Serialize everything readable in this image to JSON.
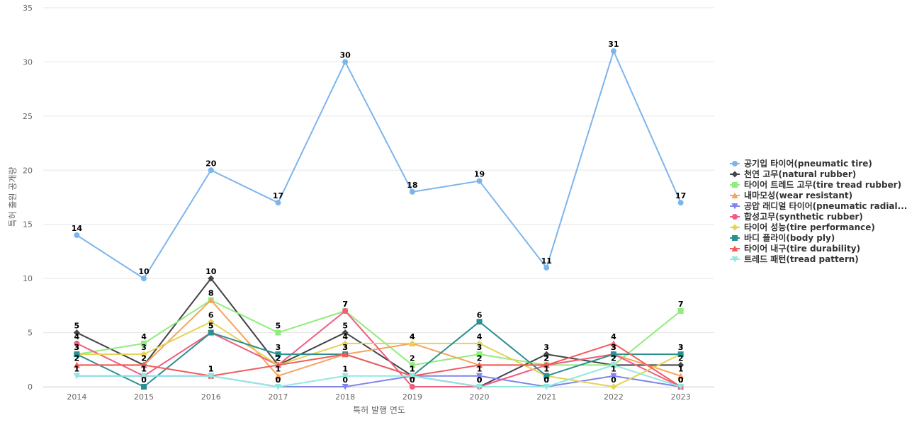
{
  "chart_data": {
    "type": "line",
    "title": "",
    "xlabel": "특허 발행 연도",
    "ylabel": "특허 출원 공개량",
    "categories": [
      "2014",
      "2015",
      "2016",
      "2017",
      "2018",
      "2019",
      "2020",
      "2021",
      "2022",
      "2023"
    ],
    "ylim": [
      0,
      35
    ],
    "yticks": [
      0,
      5,
      10,
      15,
      20,
      25,
      30,
      35
    ],
    "grid": true,
    "legend_position": "right",
    "series": [
      {
        "name": "공기입 타이어(pneumatic tire)",
        "color": "#7cb5ec",
        "marker": "circle",
        "values": [
          14,
          10,
          20,
          17,
          30,
          18,
          19,
          11,
          31,
          17
        ]
      },
      {
        "name": "천연 고무(natural rubber)",
        "color": "#434348",
        "marker": "diamond",
        "values": [
          5,
          2,
          10,
          2,
          5,
          1,
          0,
          3,
          2,
          2
        ]
      },
      {
        "name": "타이어 트레드 고무(tire tread rubber)",
        "color": "#90ed7d",
        "marker": "square",
        "values": [
          3,
          4,
          8,
          5,
          7,
          2,
          3,
          2,
          2,
          7
        ]
      },
      {
        "name": "내마모성(wear resistant)",
        "color": "#f7a35c",
        "marker": "triangle",
        "values": [
          2,
          2,
          8,
          1,
          3,
          4,
          2,
          2,
          3,
          1
        ]
      },
      {
        "name": "공압 래디얼 타이어(pneumatic radial...",
        "color": "#8085e9",
        "marker": "triangle-down",
        "values": [
          1,
          1,
          1,
          0,
          0,
          1,
          1,
          0,
          1,
          0
        ]
      },
      {
        "name": "합성고무(synthetic rubber)",
        "color": "#f15c80",
        "marker": "circle",
        "values": [
          4,
          1,
          5,
          2,
          7,
          0,
          0,
          2,
          3,
          0
        ]
      },
      {
        "name": "타이어 성능(tire performance)",
        "color": "#e4d354",
        "marker": "diamond",
        "values": [
          3,
          3,
          6,
          2,
          4,
          4,
          4,
          1,
          0,
          3
        ]
      },
      {
        "name": "바디 플라이(body ply)",
        "color": "#2b908f",
        "marker": "square",
        "values": [
          3,
          0,
          5,
          3,
          3,
          1,
          6,
          1,
          3,
          3
        ]
      },
      {
        "name": "타이어 내구(tire durability)",
        "color": "#f45b5b",
        "marker": "triangle",
        "values": [
          2,
          2,
          1,
          2,
          3,
          1,
          2,
          2,
          4,
          0
        ]
      },
      {
        "name": "트레드 패턴(tread pattern)",
        "color": "#91e8e1",
        "marker": "triangle-down",
        "values": [
          1,
          1,
          1,
          0,
          1,
          1,
          0,
          0,
          2,
          0
        ]
      }
    ]
  }
}
